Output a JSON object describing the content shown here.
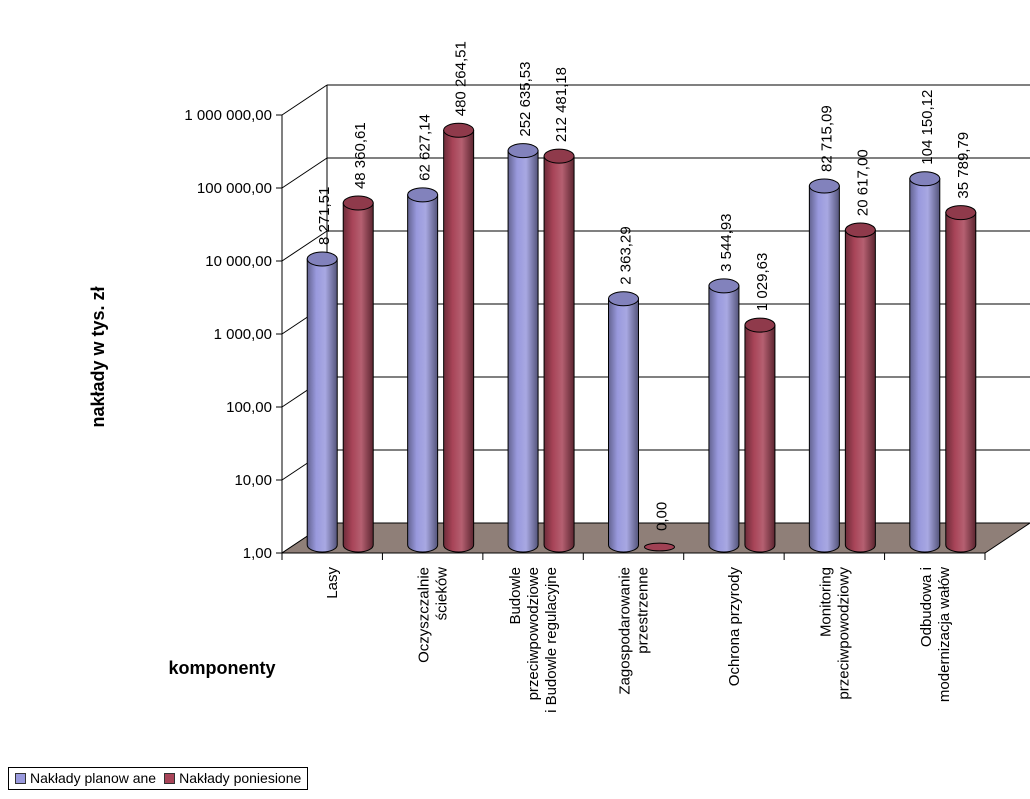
{
  "chart_data": {
    "type": "bar",
    "style": "3d-cylinder",
    "log_scale": true,
    "ylim": [
      1,
      1000000
    ],
    "ylabel": "nakłady w tys. zł",
    "xlabel": "komponenty",
    "yticks": [
      "1,00",
      "10,00",
      "100,00",
      "1 000,00",
      "10 000,00",
      "100 000,00",
      "1 000 000,00"
    ],
    "categories": [
      [
        "Lasy"
      ],
      [
        "Oczyszczalnie",
        "ścieków"
      ],
      [
        "Budowle",
        "przeciwpowodziowe",
        "i Budowle regulacyjne"
      ],
      [
        "Zagospodarowanie",
        "przestrzenne"
      ],
      [
        "Ochrona przyrody"
      ],
      [
        "Monitoring",
        "przeciwpowodziowy"
      ],
      [
        "Odbudowa i",
        "modernizacja wałów"
      ]
    ],
    "series": [
      {
        "name": "Nakłady planow ane",
        "color": "#9999dd",
        "values": [
          8271.51,
          62627.14,
          252635.53,
          2363.29,
          3544.93,
          82715.09,
          104150.12
        ],
        "labels": [
          "8 271,51",
          "62 627,14",
          "252 635,53",
          "2 363,29",
          "3 544,93",
          "82 715,09",
          "104 150,12"
        ]
      },
      {
        "name": "Nakłady poniesione",
        "color": "#a84458",
        "values": [
          48360.61,
          480264.51,
          212481.18,
          0,
          1029.63,
          20617.0,
          35789.79
        ],
        "labels": [
          "48 360,61",
          "480 264,51",
          "212 481,18",
          "0,00",
          "1 029,63",
          "20 617,00",
          "35 789,79"
        ]
      }
    ],
    "grid": true,
    "legend_position": "bottom-left"
  }
}
